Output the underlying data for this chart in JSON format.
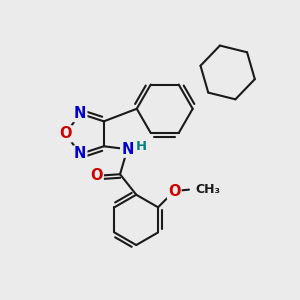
{
  "background_color": "#ebebeb",
  "bond_color": "#1a1a1a",
  "bond_width": 1.5,
  "atom_colors": {
    "N": "#0000cc",
    "O": "#cc0000",
    "NH_color": "#008080",
    "C": "#1a1a1a"
  },
  "font_size_atom": 10.5,
  "font_size_H": 9.5,
  "figsize": [
    3.0,
    3.0
  ],
  "dpi": 100
}
